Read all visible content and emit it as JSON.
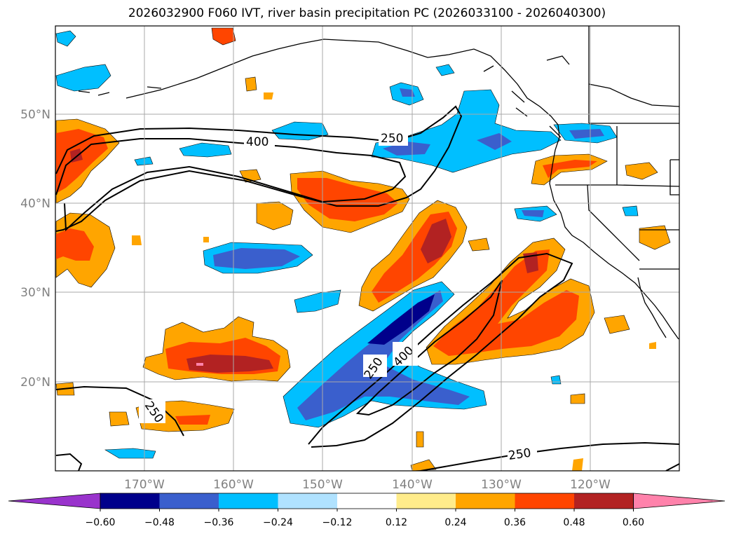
{
  "title": "2026032900 F060 IVT, river basin precipitation PC (2026033100 - 2026040300)",
  "latitude_labels": [
    "50°N",
    "40°N",
    "30°N",
    "20°N"
  ],
  "longitude_labels": [
    "170°W",
    "160°W",
    "150°W",
    "140°W",
    "130°W",
    "120°W"
  ],
  "ivt_contour_labels": [
    "400",
    "250",
    "250",
    "400",
    "250",
    "250"
  ],
  "colorbar": {
    "tick_labels": [
      "−0.60",
      "−0.48",
      "−0.36",
      "−0.24",
      "−0.12",
      "0.12",
      "0.24",
      "0.36",
      "0.48",
      "0.60"
    ],
    "colors": [
      "#9933cc",
      "#00008b",
      "#3a5fcd",
      "#00bfff",
      "#b0e2ff",
      "#ffffff",
      "#ffec8b",
      "#ffa500",
      "#ff4500",
      "#b22222",
      "#ff82ab"
    ]
  }
}
